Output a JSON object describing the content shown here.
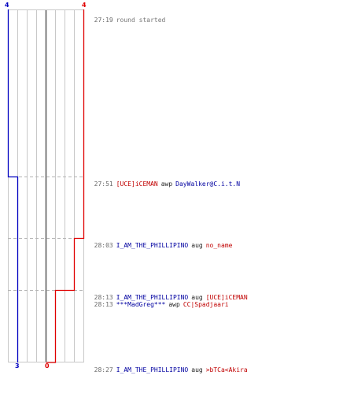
{
  "scores": {
    "blue_start": "4",
    "red_start": "4",
    "blue_end": "3",
    "red_end": "0"
  },
  "colors": {
    "blue_team": "#0000c0",
    "red_team": "#e00000",
    "grid": "#c8c8c8",
    "dash": "#b0b0b0",
    "center": "#555555"
  },
  "events": [
    {
      "time": "27:19",
      "text": "round started"
    },
    {
      "time": "27:51",
      "actor": "[UCE]iCEMAN",
      "actor_team": "red",
      "verb": "awp",
      "victim": "DayWalker@C.i.t.N",
      "victim_team": "blue"
    },
    {
      "time": "28:03",
      "actor": "I_AM_THE_PHILLIPINO",
      "actor_team": "blue",
      "verb": "aug",
      "victim": "no_name",
      "victim_team": "red"
    },
    {
      "time": "28:13",
      "actor": "I_AM_THE_PHILLIPINO",
      "actor_team": "blue",
      "verb": "aug",
      "victim": "[UCE]iCEMAN",
      "victim_team": "red"
    },
    {
      "time": "28:13",
      "actor": "***MadGreg***",
      "actor_team": "blue",
      "verb": "awp",
      "victim": "CC|Spadjaari",
      "victim_team": "red"
    },
    {
      "time": "28:27",
      "actor": "I_AM_THE_PHILLIPINO",
      "actor_team": "blue",
      "verb": "aug",
      "victim": ">bTCa<Akira",
      "victim_team": "red"
    }
  ]
}
